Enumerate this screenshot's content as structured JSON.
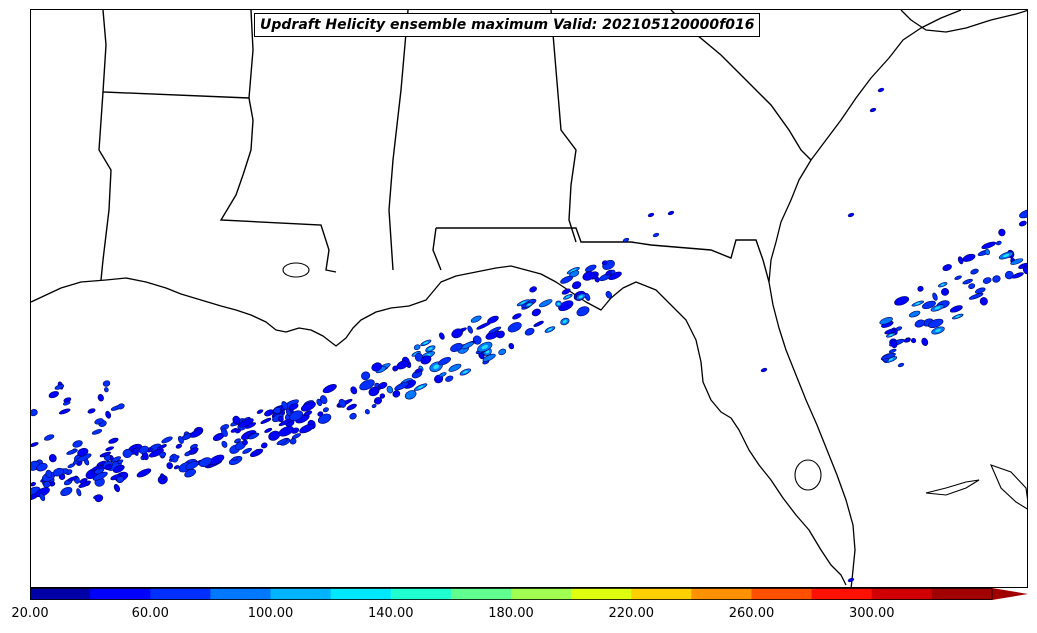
{
  "title": "Updraft Helicity ensemble maximum Valid: 202105120000f016",
  "colorbar": {
    "colors": [
      "#0000a8",
      "#0000ff",
      "#0030ff",
      "#0078ff",
      "#00b4ff",
      "#00e8ff",
      "#20ffd0",
      "#60ff90",
      "#a0ff50",
      "#e0ff10",
      "#ffd000",
      "#ff9000",
      "#ff5000",
      "#ff1000",
      "#d00000",
      "#a00000"
    ],
    "tick_labels": [
      "20.00",
      "60.00",
      "100.00",
      "140.00",
      "180.00",
      "220.00",
      "260.00",
      "300.00"
    ]
  }
}
